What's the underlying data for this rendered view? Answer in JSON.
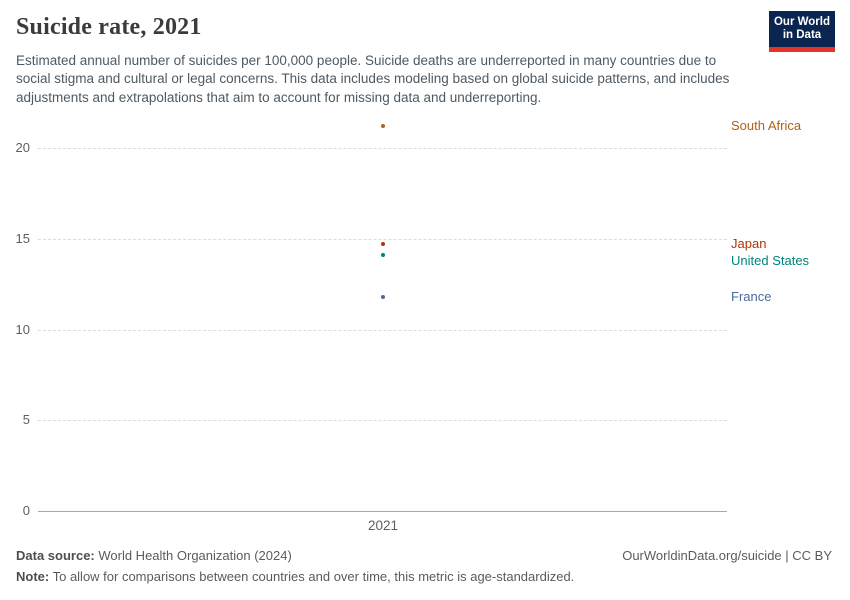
{
  "header": {
    "title": "Suicide rate, 2021",
    "subtitle": "Estimated annual number of suicides per 100,000 people. Suicide deaths are underreported in many countries due to social stigma and cultural or legal concerns. This data includes modeling based on global suicide patterns, and includes adjustments and extrapolations that aim to account for missing data and underreporting.",
    "logo": {
      "line1": "Our World",
      "line2": "in Data",
      "bg": "#0a2550",
      "accent": "#e5332a"
    }
  },
  "chart_data": {
    "type": "scatter",
    "x": [
      "2021"
    ],
    "series": [
      {
        "name": "South Africa",
        "values": [
          21.2
        ],
        "color": "#B16214"
      },
      {
        "name": "Japan",
        "values": [
          14.7
        ],
        "color": "#B13507"
      },
      {
        "name": "United States",
        "values": [
          14.1
        ],
        "color": "#00847E"
      },
      {
        "name": "France",
        "values": [
          11.8
        ],
        "color": "#4C6A9C"
      }
    ],
    "yticks": [
      0,
      5,
      10,
      15,
      20
    ],
    "ylim": [
      0,
      21.7
    ],
    "xlabel": "",
    "ylabel": "",
    "grid": true,
    "legend_position": "right-labels"
  },
  "footer": {
    "source_label": "Data source:",
    "source_text": " World Health Organization (2024)",
    "origin": "OurWorldinData.org/suicide | CC BY",
    "note_label": "Note:",
    "note_text": " To allow for comparisons between countries and over time, this metric is age-standardized."
  }
}
